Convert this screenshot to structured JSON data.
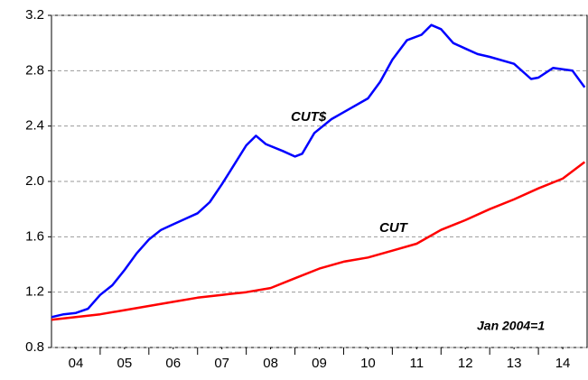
{
  "chart_data": {
    "type": "line",
    "xlim": [
      2004,
      2015
    ],
    "xticks": [
      {
        "value": 2004.5,
        "label": "04"
      },
      {
        "value": 2005.5,
        "label": "05"
      },
      {
        "value": 2006.5,
        "label": "06"
      },
      {
        "value": 2007.5,
        "label": "07"
      },
      {
        "value": 2008.5,
        "label": "08"
      },
      {
        "value": 2009.5,
        "label": "09"
      },
      {
        "value": 2010.5,
        "label": "10"
      },
      {
        "value": 2011.5,
        "label": "11"
      },
      {
        "value": 2012.5,
        "label": "12"
      },
      {
        "value": 2013.5,
        "label": "13"
      },
      {
        "value": 2014.5,
        "label": "14"
      }
    ],
    "ylim": [
      0.8,
      3.2
    ],
    "yticks": [
      0.8,
      1.2,
      1.6,
      {
        "value": 2,
        "label": "2.0"
      },
      2.4,
      2.8,
      3.2
    ],
    "grid": true,
    "series": [
      {
        "name": "CUT$",
        "color": "#0000ff",
        "x": [
          2004,
          2004.25,
          2004.5,
          2004.75,
          2005,
          2005.25,
          2005.5,
          2005.75,
          2006,
          2006.25,
          2006.5,
          2006.75,
          2007,
          2007.25,
          2007.5,
          2007.75,
          2008,
          2008.2,
          2008.4,
          2008.75,
          2009,
          2009.15,
          2009.4,
          2009.75,
          2010,
          2010.5,
          2010.75,
          2011,
          2011.3,
          2011.6,
          2011.8,
          2012,
          2012.25,
          2012.5,
          2012.75,
          2013,
          2013.5,
          2013.85,
          2014,
          2014.3,
          2014.7,
          2014.95
        ],
        "values": [
          1.02,
          1.04,
          1.05,
          1.08,
          1.18,
          1.25,
          1.36,
          1.48,
          1.58,
          1.65,
          1.69,
          1.73,
          1.77,
          1.85,
          1.98,
          2.12,
          2.26,
          2.33,
          2.27,
          2.22,
          2.18,
          2.2,
          2.35,
          2.45,
          2.5,
          2.6,
          2.72,
          2.88,
          3.02,
          3.06,
          3.13,
          3.1,
          3.0,
          2.96,
          2.92,
          2.9,
          2.85,
          2.74,
          2.75,
          2.82,
          2.8,
          2.68
        ]
      },
      {
        "name": "CUT",
        "color": "#ff0000",
        "x": [
          2004,
          2004.5,
          2005,
          2005.5,
          2006,
          2006.5,
          2007,
          2007.5,
          2008,
          2008.5,
          2009,
          2009.5,
          2010,
          2010.5,
          2011,
          2011.5,
          2012,
          2012.5,
          2013,
          2013.5,
          2014,
          2014.5,
          2014.95
        ],
        "values": [
          1.0,
          1.02,
          1.04,
          1.07,
          1.1,
          1.13,
          1.16,
          1.18,
          1.2,
          1.23,
          1.3,
          1.37,
          1.42,
          1.45,
          1.5,
          1.55,
          1.65,
          1.72,
          1.8,
          1.87,
          1.95,
          2.02,
          2.14
        ]
      }
    ],
    "annotations": [
      "CUT$",
      "CUT",
      "Jan 2004=1"
    ]
  }
}
